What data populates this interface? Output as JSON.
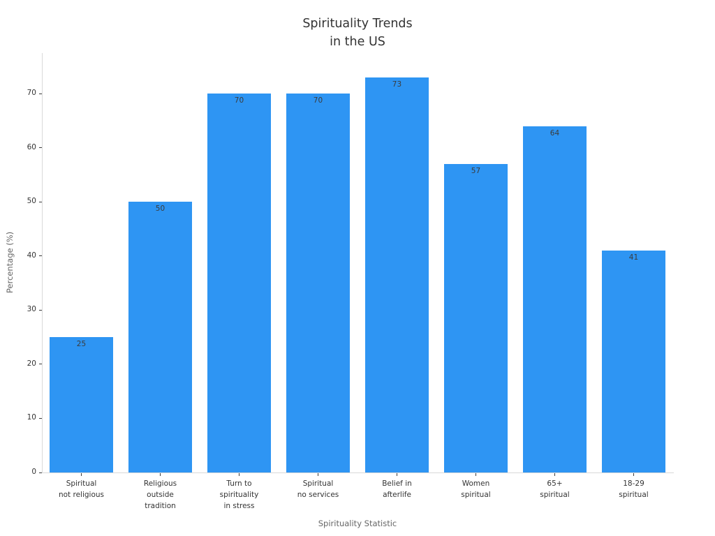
{
  "chart_data": {
    "type": "bar",
    "title": "Spirituality Trends\nin the US",
    "xlabel": "Spirituality Statistic",
    "ylabel": "Percentage (%)",
    "categories": [
      "Spiritual\nnot religious",
      "Religious\noutside\ntradition",
      "Turn to\nspirituality\nin stress",
      "Spiritual\nno services",
      "Belief in\nafterlife",
      "Women\nspiritual",
      "65+\nspiritual",
      "18-29\nspiritual"
    ],
    "values": [
      25,
      50,
      70,
      70,
      73,
      57,
      64,
      41
    ],
    "yticks": [
      0,
      10,
      20,
      30,
      40,
      50,
      60,
      70
    ],
    "ylim": [
      0,
      77.5
    ],
    "grid": false,
    "legend": null,
    "bar_width_fraction": 0.8,
    "colors": {
      "bar": "#2e95f3",
      "bar_label": "#3b3b3b",
      "tick_label": "#333333",
      "axis_title": "#666666",
      "title": "#333333",
      "spine": "#d9d9d9",
      "tick_mark": "#3a3a3a",
      "background": "#ffffff"
    }
  }
}
